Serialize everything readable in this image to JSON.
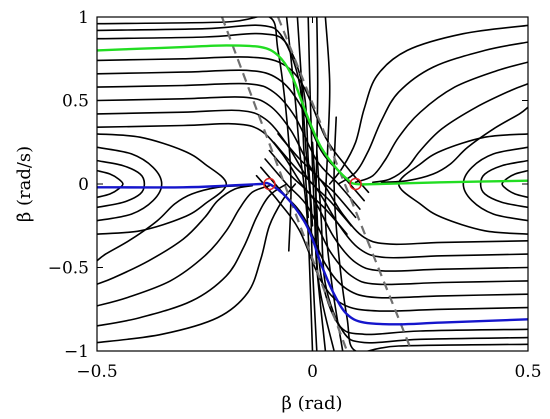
{
  "chart_data": {
    "type": "line",
    "title": "",
    "xlabel": "β (rad)",
    "ylabel": "β̇ (rad/s)",
    "xlim": [
      -0.5,
      0.5
    ],
    "ylim": [
      -1,
      1
    ],
    "xticks": [
      -0.5,
      0,
      0.5
    ],
    "xtick_labels": [
      "−0.5",
      "0",
      "0.5"
    ],
    "yticks": [
      -1,
      -0.5,
      0,
      0.5,
      1
    ],
    "ytick_labels": [
      "−1",
      "−0.5",
      "0",
      "0.5",
      "1"
    ],
    "grid": false,
    "legend": "none",
    "colors": {
      "trajectories": "#000000",
      "green_curve": "#22dd22",
      "blue_curve": "#1515cc",
      "dashed_lines": "#707070",
      "markers": "#dd2222"
    },
    "saddle_points": [
      {
        "x": -0.1,
        "y": 0.0
      },
      {
        "x": 0.1,
        "y": 0.0
      }
    ],
    "dashed_lines": [
      {
        "x": [
          -0.21,
          0.08
        ],
        "y": [
          1.0,
          -1.0
        ]
      },
      {
        "x": [
          -0.08,
          0.23
        ],
        "y": [
          1.0,
          -1.0
        ]
      }
    ],
    "series": [
      {
        "role": "stable-manifold-upper",
        "color": "green",
        "x": [
          -0.5,
          -0.4,
          -0.3,
          -0.2,
          -0.12,
          -0.08,
          -0.05,
          -0.02,
          0.0,
          0.02,
          0.05,
          0.08,
          0.1,
          0.15,
          0.3,
          0.5
        ],
        "y": [
          0.8,
          0.81,
          0.82,
          0.83,
          0.82,
          0.77,
          0.66,
          0.46,
          0.33,
          0.22,
          0.11,
          0.03,
          0.0,
          0.0,
          0.01,
          0.02
        ]
      },
      {
        "role": "stable-manifold-lower",
        "color": "blue",
        "x": [
          -0.5,
          -0.3,
          -0.2,
          -0.12,
          -0.1,
          -0.06,
          -0.02,
          0.0,
          0.02,
          0.05,
          0.08,
          0.12,
          0.2,
          0.3,
          0.5
        ],
        "y": [
          -0.02,
          -0.02,
          -0.01,
          0.0,
          0.0,
          -0.08,
          -0.22,
          -0.33,
          -0.48,
          -0.66,
          -0.78,
          -0.83,
          -0.84,
          -0.83,
          -0.81
        ]
      }
    ],
    "trajectories": [
      {
        "x": [
          -0.5,
          -0.3,
          -0.15,
          -0.07,
          -0.02,
          0.03,
          0.08,
          0.13
        ],
        "y": [
          0.74,
          0.75,
          0.76,
          0.72,
          0.58,
          0.28,
          0.1,
          -0.05
        ]
      },
      {
        "x": [
          -0.5,
          -0.3,
          -0.15,
          -0.08,
          -0.03,
          0.02,
          0.07,
          0.12
        ],
        "y": [
          0.66,
          0.67,
          0.68,
          0.63,
          0.48,
          0.2,
          0.05,
          -0.1
        ]
      },
      {
        "x": [
          -0.5,
          -0.3,
          -0.15,
          -0.09,
          -0.04,
          0.01,
          0.06,
          0.11
        ],
        "y": [
          0.58,
          0.59,
          0.6,
          0.55,
          0.4,
          0.14,
          0.0,
          -0.15
        ]
      },
      {
        "x": [
          -0.5,
          -0.3,
          -0.16,
          -0.1,
          -0.05,
          0.0,
          0.05,
          0.1
        ],
        "y": [
          0.5,
          0.51,
          0.52,
          0.47,
          0.32,
          0.08,
          -0.05,
          -0.2
        ]
      },
      {
        "x": [
          -0.5,
          -0.3,
          -0.17,
          -0.11,
          -0.06,
          -0.01,
          0.04,
          0.09
        ],
        "y": [
          0.42,
          0.43,
          0.44,
          0.39,
          0.24,
          0.03,
          -0.1,
          -0.25
        ]
      },
      {
        "x": [
          -0.5,
          -0.3,
          -0.18,
          -0.12,
          -0.07,
          -0.02,
          0.03,
          0.08
        ],
        "y": [
          0.34,
          0.35,
          0.36,
          0.32,
          0.18,
          -0.02,
          -0.15,
          -0.3
        ]
      },
      {
        "x": [
          0.5,
          0.3,
          0.15,
          0.07,
          0.02,
          -0.03,
          -0.08,
          -0.13
        ],
        "y": [
          -0.74,
          -0.75,
          -0.76,
          -0.72,
          -0.58,
          -0.28,
          -0.1,
          0.05
        ]
      },
      {
        "x": [
          0.5,
          0.3,
          0.15,
          0.08,
          0.03,
          -0.02,
          -0.07,
          -0.12
        ],
        "y": [
          -0.66,
          -0.67,
          -0.68,
          -0.63,
          -0.48,
          -0.2,
          -0.05,
          0.1
        ]
      },
      {
        "x": [
          0.5,
          0.3,
          0.15,
          0.09,
          0.04,
          -0.01,
          -0.06,
          -0.11
        ],
        "y": [
          -0.58,
          -0.59,
          -0.6,
          -0.55,
          -0.4,
          -0.14,
          0.0,
          0.15
        ]
      },
      {
        "x": [
          0.5,
          0.3,
          0.16,
          0.1,
          0.05,
          0.0,
          -0.05,
          -0.1
        ],
        "y": [
          -0.5,
          -0.51,
          -0.52,
          -0.47,
          -0.32,
          -0.08,
          0.05,
          0.2
        ]
      },
      {
        "x": [
          0.5,
          0.3,
          0.17,
          0.11,
          0.06,
          0.01,
          -0.04,
          -0.09
        ],
        "y": [
          -0.42,
          -0.43,
          -0.44,
          -0.39,
          -0.24,
          -0.03,
          0.1,
          0.25
        ]
      },
      {
        "x": [
          0.5,
          0.3,
          0.18,
          0.12,
          0.07,
          0.02,
          -0.03,
          -0.08
        ],
        "y": [
          -0.34,
          -0.35,
          -0.36,
          -0.32,
          -0.18,
          0.02,
          0.15,
          0.3
        ]
      },
      {
        "x": [
          -0.5,
          -0.25,
          -0.12,
          -0.07,
          -0.03,
          -0.02,
          -0.01
        ],
        "y": [
          0.92,
          0.93,
          0.95,
          0.88,
          0.6,
          0.2,
          -0.2
        ]
      },
      {
        "x": [
          -0.5,
          -0.25,
          -0.12,
          -0.06,
          -0.02,
          -0.01,
          0.0
        ],
        "y": [
          0.87,
          0.88,
          0.9,
          0.84,
          0.55,
          0.15,
          -0.25
        ]
      },
      {
        "x": [
          0.5,
          0.25,
          0.12,
          0.07,
          0.03,
          0.02,
          0.01
        ],
        "y": [
          -0.92,
          -0.93,
          -0.95,
          -0.88,
          -0.6,
          -0.2,
          0.2
        ]
      },
      {
        "x": [
          0.5,
          0.25,
          0.12,
          0.06,
          0.02,
          0.01,
          0.0
        ],
        "y": [
          -0.87,
          -0.88,
          -0.9,
          -0.84,
          -0.55,
          -0.15,
          0.25
        ]
      },
      {
        "x": [
          -0.5,
          -0.2,
          -0.1,
          -0.08,
          -0.06,
          -0.05,
          -0.055
        ],
        "y": [
          0.96,
          0.97,
          1.0,
          0.8,
          0.4,
          0.0,
          -0.4
        ]
      },
      {
        "x": [
          0.5,
          0.2,
          0.1,
          0.08,
          0.06,
          0.05,
          0.055
        ],
        "y": [
          -0.96,
          -0.97,
          -1.0,
          -0.8,
          -0.4,
          0.0,
          0.4
        ]
      },
      {
        "x": [
          -0.06,
          -0.04,
          -0.03,
          -0.02,
          -0.01,
          0.0
        ],
        "y": [
          1.0,
          0.5,
          0.2,
          0.0,
          -0.3,
          -1.0
        ]
      },
      {
        "x": [
          -0.035,
          -0.025,
          -0.015,
          -0.005,
          0.0,
          0.01
        ],
        "y": [
          1.0,
          0.6,
          0.2,
          -0.1,
          -0.5,
          -1.0
        ]
      },
      {
        "x": [
          -0.01,
          -0.005,
          0.0,
          0.005,
          0.01,
          0.03
        ],
        "y": [
          1.0,
          0.5,
          0.1,
          -0.2,
          -0.5,
          -1.0
        ]
      },
      {
        "x": [
          0.01,
          0.012,
          0.01,
          0.008,
          0.015,
          0.05
        ],
        "y": [
          1.0,
          0.6,
          0.2,
          -0.2,
          -0.6,
          -1.0
        ]
      },
      {
        "x": [
          0.03,
          0.04,
          0.035,
          0.03,
          0.045,
          0.07
        ],
        "y": [
          1.0,
          0.6,
          0.2,
          -0.2,
          -0.6,
          -1.0
        ]
      },
      {
        "x": [
          -0.5,
          -0.42,
          -0.37,
          -0.35,
          -0.37,
          -0.42,
          -0.5
        ],
        "y": [
          0.22,
          0.18,
          0.1,
          0.0,
          -0.1,
          -0.18,
          -0.22
        ]
      },
      {
        "x": [
          -0.5,
          -0.44,
          -0.4,
          -0.39,
          -0.4,
          -0.44,
          -0.5
        ],
        "y": [
          0.14,
          0.11,
          0.06,
          0.0,
          -0.06,
          -0.11,
          -0.14
        ]
      },
      {
        "x": [
          -0.5,
          -0.47,
          -0.45,
          -0.44,
          -0.45,
          -0.47,
          -0.5
        ],
        "y": [
          0.08,
          0.06,
          0.03,
          0.0,
          -0.03,
          -0.06,
          -0.08
        ]
      },
      {
        "x": [
          -0.5,
          -0.4,
          -0.3,
          -0.25,
          -0.2,
          -0.25,
          -0.3,
          -0.4,
          -0.5
        ],
        "y": [
          0.3,
          0.28,
          0.2,
          0.12,
          0.0,
          -0.12,
          -0.2,
          -0.28,
          -0.3
        ]
      },
      {
        "x": [
          0.5,
          0.42,
          0.37,
          0.35,
          0.37,
          0.42,
          0.5
        ],
        "y": [
          0.22,
          0.18,
          0.1,
          0.0,
          -0.1,
          -0.18,
          -0.22
        ]
      },
      {
        "x": [
          0.5,
          0.44,
          0.4,
          0.39,
          0.4,
          0.44,
          0.5
        ],
        "y": [
          0.14,
          0.11,
          0.06,
          0.0,
          -0.06,
          -0.11,
          -0.14
        ]
      },
      {
        "x": [
          0.5,
          0.47,
          0.45,
          0.44,
          0.45,
          0.47,
          0.5
        ],
        "y": [
          0.08,
          0.06,
          0.03,
          0.0,
          -0.03,
          -0.06,
          -0.08
        ]
      },
      {
        "x": [
          0.5,
          0.4,
          0.3,
          0.25,
          0.2,
          0.25,
          0.3,
          0.4,
          0.5
        ],
        "y": [
          0.3,
          0.28,
          0.2,
          0.12,
          0.0,
          -0.12,
          -0.2,
          -0.28,
          -0.3
        ]
      },
      {
        "x": [
          0.5,
          0.35,
          0.22,
          0.15,
          0.12,
          0.1,
          0.07,
          0.04
        ],
        "y": [
          0.95,
          0.9,
          0.8,
          0.65,
          0.45,
          0.25,
          0.1,
          0.0
        ]
      },
      {
        "x": [
          0.5,
          0.4,
          0.28,
          0.2,
          0.16,
          0.13,
          0.1,
          0.06
        ],
        "y": [
          0.85,
          0.8,
          0.7,
          0.55,
          0.38,
          0.2,
          0.07,
          0.0
        ]
      },
      {
        "x": [
          0.5,
          0.43,
          0.33,
          0.25,
          0.2,
          0.17,
          0.14,
          0.1
        ],
        "y": [
          0.73,
          0.68,
          0.58,
          0.43,
          0.28,
          0.15,
          0.05,
          0.01
        ]
      },
      {
        "x": [
          0.5,
          0.46,
          0.38,
          0.3,
          0.25,
          0.22,
          0.18,
          0.14
        ],
        "y": [
          0.6,
          0.56,
          0.46,
          0.33,
          0.2,
          0.1,
          0.03,
          0.01
        ]
      },
      {
        "x": [
          0.5,
          0.48,
          0.42,
          0.36,
          0.32,
          0.28,
          0.22,
          0.16
        ],
        "y": [
          0.46,
          0.42,
          0.33,
          0.22,
          0.12,
          0.06,
          0.02,
          0.01
        ]
      },
      {
        "x": [
          -0.5,
          -0.35,
          -0.22,
          -0.15,
          -0.12,
          -0.1,
          -0.07,
          -0.04
        ],
        "y": [
          -0.95,
          -0.9,
          -0.8,
          -0.65,
          -0.45,
          -0.25,
          -0.1,
          0.0
        ]
      },
      {
        "x": [
          -0.5,
          -0.4,
          -0.28,
          -0.2,
          -0.16,
          -0.13,
          -0.1,
          -0.06
        ],
        "y": [
          -0.85,
          -0.8,
          -0.7,
          -0.55,
          -0.38,
          -0.2,
          -0.07,
          0.0
        ]
      },
      {
        "x": [
          -0.5,
          -0.43,
          -0.33,
          -0.25,
          -0.2,
          -0.17,
          -0.14,
          -0.1
        ],
        "y": [
          -0.73,
          -0.68,
          -0.58,
          -0.43,
          -0.28,
          -0.15,
          -0.05,
          -0.01
        ]
      },
      {
        "x": [
          -0.5,
          -0.46,
          -0.38,
          -0.3,
          -0.25,
          -0.22,
          -0.18,
          -0.14
        ],
        "y": [
          -0.6,
          -0.56,
          -0.46,
          -0.33,
          -0.2,
          -0.1,
          -0.03,
          -0.01
        ]
      },
      {
        "x": [
          -0.5,
          -0.48,
          -0.42,
          -0.36,
          -0.32,
          -0.28,
          -0.22,
          -0.16
        ],
        "y": [
          -0.46,
          -0.42,
          -0.33,
          -0.22,
          -0.12,
          -0.06,
          -0.02,
          -0.01
        ]
      }
    ]
  }
}
